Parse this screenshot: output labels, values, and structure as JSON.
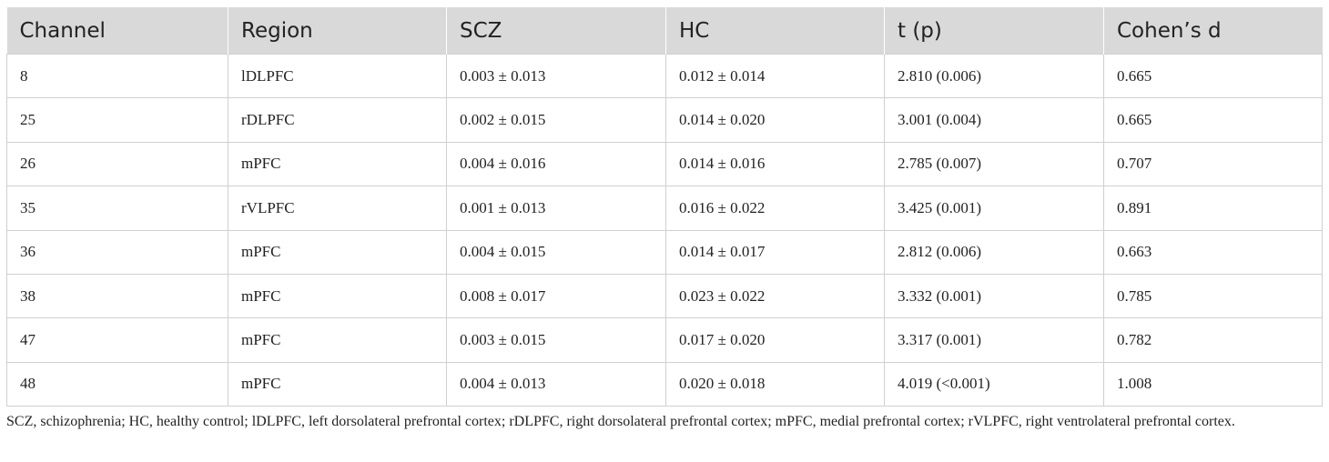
{
  "table": {
    "columns": [
      "Channel",
      "Region",
      "SCZ",
      "HC",
      "t (p)",
      "Cohen’s d"
    ],
    "rows": [
      [
        "8",
        "lDLPFC",
        "0.003 ± 0.013",
        "0.012 ± 0.014",
        "2.810 (0.006)",
        "0.665"
      ],
      [
        "25",
        "rDLPFC",
        "0.002 ± 0.015",
        "0.014 ± 0.020",
        "3.001 (0.004)",
        "0.665"
      ],
      [
        "26",
        "mPFC",
        "0.004 ± 0.016",
        "0.014 ± 0.016",
        "2.785 (0.007)",
        "0.707"
      ],
      [
        "35",
        "rVLPFC",
        "0.001 ± 0.013",
        "0.016 ± 0.022",
        "3.425 (0.001)",
        "0.891"
      ],
      [
        "36",
        "mPFC",
        "0.004 ± 0.015",
        "0.014 ± 0.017",
        "2.812 (0.006)",
        "0.663"
      ],
      [
        "38",
        "mPFC",
        "0.008 ± 0.017",
        "0.023 ± 0.022",
        "3.332 (0.001)",
        "0.785"
      ],
      [
        "47",
        "mPFC",
        "0.003 ± 0.015",
        "0.017 ± 0.020",
        "3.317 (0.001)",
        "0.782"
      ],
      [
        "48",
        "mPFC",
        "0.004 ± 0.013",
        "0.020 ± 0.018",
        "4.019 (<0.001)",
        "1.008"
      ]
    ],
    "footnote": "SCZ, schizophrenia; HC, healthy control; lDLPFC, left dorsolateral prefrontal cortex; rDLPFC, right dorsolateral prefrontal cortex; mPFC, medial prefrontal cortex; rVLPFC, right ventrolateral prefrontal cortex."
  }
}
